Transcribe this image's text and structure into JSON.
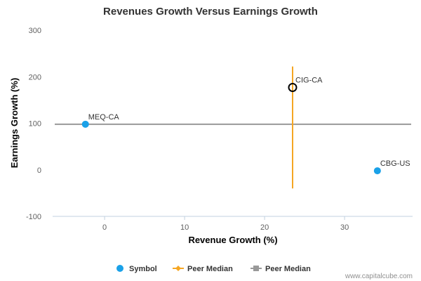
{
  "chart_data": {
    "type": "scatter",
    "title": "Revenues Growth Versus Earnings Growth",
    "xlabel": "Revenue Growth (%)",
    "ylabel": "Earnings Growth (%)",
    "xlim": [
      -6.5,
      38.5
    ],
    "ylim": [
      -100,
      300
    ],
    "x_ticks": [
      0,
      10,
      20,
      30
    ],
    "y_ticks": [
      -100,
      0,
      100,
      200,
      300
    ],
    "grid": false,
    "legend_position": "bottom",
    "points": [
      {
        "label": "MEQ-CA",
        "x": -2.4,
        "y": 98,
        "marker": "filled",
        "color": "#1aa1e8"
      },
      {
        "label": "CIG-CA",
        "x": 23.5,
        "y": 177,
        "marker": "hollow",
        "color": "#000000"
      },
      {
        "label": "CBG-US",
        "x": 34.1,
        "y": -2,
        "marker": "filled",
        "color": "#1aa1e8"
      }
    ],
    "peer_median_x": {
      "label": "Peer Median",
      "x": 23.5,
      "y_from": -40,
      "y_to": 222,
      "color": "#f5a623"
    },
    "peer_median_y": {
      "label": "Peer Median",
      "y": 98,
      "color": "#999999"
    },
    "legend": [
      {
        "label": "Symbol",
        "icon": "circle-icon",
        "color": "#1aa1e8"
      },
      {
        "label": "Peer Median",
        "icon": "line-diamond-icon",
        "color": "#f5a623"
      },
      {
        "label": "Peer Median",
        "icon": "line-square-icon",
        "color": "#999999"
      }
    ]
  },
  "credit": "www.capitalcube.com"
}
